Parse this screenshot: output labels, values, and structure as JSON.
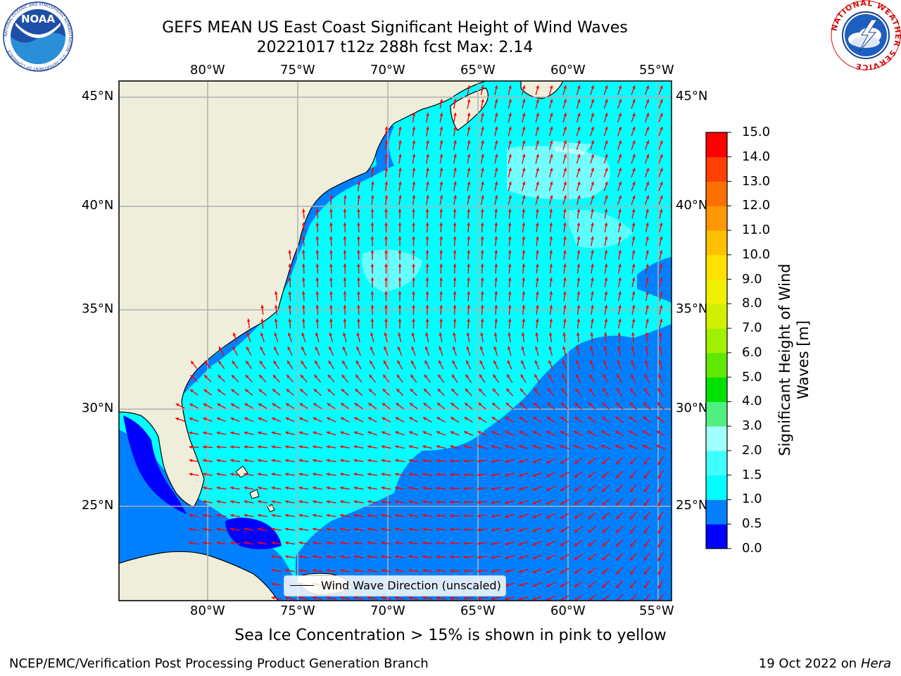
{
  "header": {
    "title_line1": "GEFS MEAN US East Coast Significant Height of Wind Waves",
    "title_line2": "20221017 t12z 288h fcst   Max: 2.14"
  },
  "map": {
    "lon_ticks": [
      "80°W",
      "75°W",
      "70°W",
      "65°W",
      "60°W",
      "55°W"
    ],
    "lat_ticks": [
      "45°N",
      "40°N",
      "35°N",
      "30°N",
      "25°N"
    ],
    "legend_label": "Wind Wave Direction (unscaled)",
    "colors": {
      "land": "#efeedb",
      "ocean_dominant": "#00ffff",
      "ocean_low": "#0080ff",
      "ocean_high": "#80ffff",
      "arrow": "#ff0000",
      "grid": "#b0b0b0"
    }
  },
  "colorbar": {
    "title_line1": "Significant Height of Wind",
    "title_line2": "Waves [m]",
    "ticks": [
      "0.0",
      "0.5",
      "1.0",
      "1.5",
      "2.0",
      "3.0",
      "4.0",
      "5.0",
      "6.0",
      "7.0",
      "8.0",
      "9.0",
      "10.0",
      "11.0",
      "12.0",
      "13.0",
      "14.0",
      "15.0"
    ],
    "colors": [
      "#0000ff",
      "#0080ff",
      "#00ffff",
      "#40ffff",
      "#a0ffff",
      "#50f080",
      "#00e000",
      "#60e800",
      "#a0f000",
      "#d0f000",
      "#f0f000",
      "#ffe000",
      "#ffc000",
      "#ff9800",
      "#ff7000",
      "#ff4000",
      "#ff0000"
    ]
  },
  "logos": {
    "noaa_text": "NOAA",
    "noaa_ring": "NATIONAL OCEANIC AND ATMOSPHERIC ADMINISTRATION · U.S. DEPARTMENT OF COMMERCE",
    "nws_ring": "NATIONAL WEATHER SERVICE"
  },
  "footer": {
    "sea_ice_note": "Sea Ice Concentration > 15% is shown in pink to yellow",
    "left": "NCEP/EMC/Verification Post Processing Product Generation Branch",
    "right_date": "19 Oct 2022 on ",
    "right_machine": "Hera"
  }
}
